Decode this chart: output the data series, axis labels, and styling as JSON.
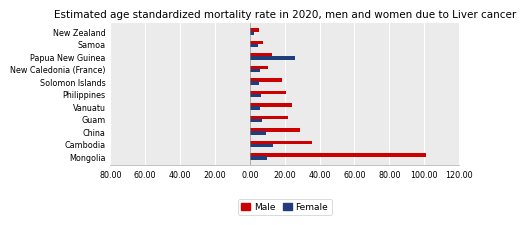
{
  "title": "Estimated age standardized mortality rate in 2020, men and women due to Liver cancer",
  "countries": [
    "Mongolia",
    "Cambodia",
    "China",
    "Guam",
    "Vanuatu",
    "Philippines",
    "Solomon Islands",
    "New Caledonia (France)",
    "Papua New Guinea",
    "Samoa",
    "New Zealand"
  ],
  "male": [
    101.0,
    35.5,
    28.5,
    22.0,
    24.0,
    20.5,
    18.5,
    10.5,
    12.5,
    7.5,
    5.5
  ],
  "female": [
    10.0,
    13.5,
    9.5,
    7.0,
    6.0,
    6.5,
    5.5,
    6.0,
    26.0,
    4.5,
    2.5
  ],
  "male_color": "#CC0000",
  "female_color": "#1F3E7A",
  "xlim_left": -80,
  "xlim_right": 120,
  "xticks": [
    -80,
    -60,
    -40,
    -20,
    0,
    20,
    40,
    60,
    80,
    100,
    120
  ],
  "xtick_labels": [
    "80.00",
    "60.00",
    "40.00",
    "20.00",
    "0.00",
    "20.00",
    "40.00",
    "60.00",
    "80.00",
    "100.00",
    "120.00"
  ],
  "title_fontsize": 7.5,
  "tick_fontsize": 5.8,
  "legend_fontsize": 6.5,
  "bar_gap": 0.22,
  "bar_height": 0.28,
  "plot_bg": "#EBEBEB",
  "grid_color": "#FFFFFF",
  "border_color": "#AAAAAA"
}
